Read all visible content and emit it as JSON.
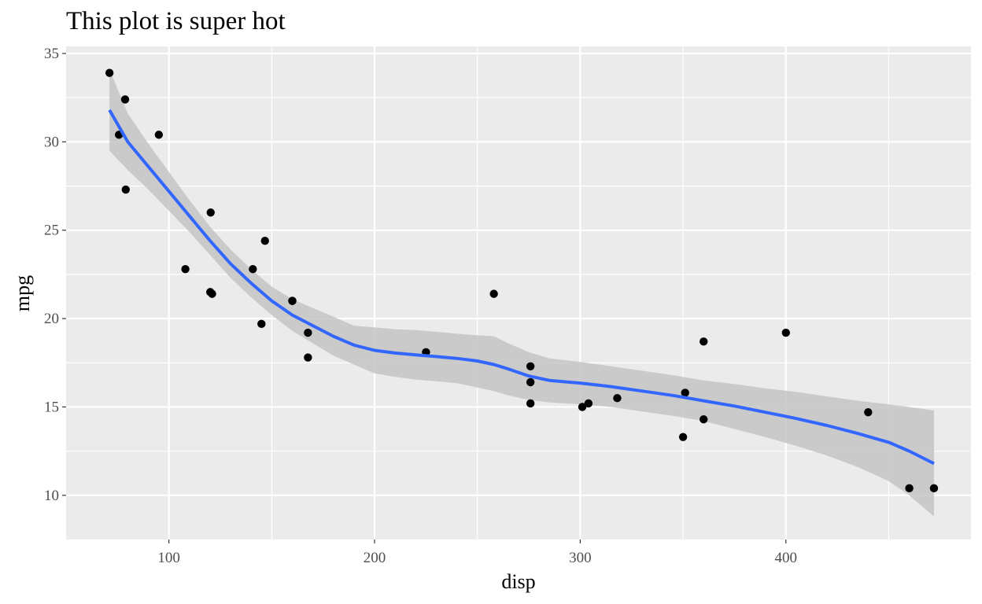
{
  "chart_data": {
    "type": "scatter",
    "title": "This plot is super hot",
    "xlabel": "disp",
    "ylabel": "mpg",
    "xlim": [
      50,
      490
    ],
    "ylim": [
      7.5,
      35.4
    ],
    "x_ticks": [
      100,
      200,
      300,
      400
    ],
    "y_ticks": [
      10,
      15,
      20,
      25,
      30,
      35
    ],
    "grid": true,
    "colors": {
      "panel_background": "#ebebeb",
      "grid_line": "#ffffff",
      "point": "#000000",
      "smooth_line": "#3366ff",
      "confidence_band": "#c4c4c4"
    },
    "series": [
      {
        "points": [
          {
            "x": 71.1,
            "y": 33.9
          },
          {
            "x": 75.7,
            "y": 30.4
          },
          {
            "x": 78.7,
            "y": 32.4
          },
          {
            "x": 79.0,
            "y": 27.3
          },
          {
            "x": 95.1,
            "y": 30.4
          },
          {
            "x": 108.0,
            "y": 22.8
          },
          {
            "x": 120.1,
            "y": 21.5
          },
          {
            "x": 120.3,
            "y": 26.0
          },
          {
            "x": 121.0,
            "y": 21.4
          },
          {
            "x": 140.8,
            "y": 22.8
          },
          {
            "x": 145.0,
            "y": 19.7
          },
          {
            "x": 146.7,
            "y": 24.4
          },
          {
            "x": 160.0,
            "y": 21.0
          },
          {
            "x": 160.0,
            "y": 21.0
          },
          {
            "x": 167.6,
            "y": 19.2
          },
          {
            "x": 167.6,
            "y": 17.8
          },
          {
            "x": 225.0,
            "y": 18.1
          },
          {
            "x": 258.0,
            "y": 21.4
          },
          {
            "x": 275.8,
            "y": 16.4
          },
          {
            "x": 275.8,
            "y": 17.3
          },
          {
            "x": 275.8,
            "y": 15.2
          },
          {
            "x": 301.0,
            "y": 15.0
          },
          {
            "x": 304.0,
            "y": 15.2
          },
          {
            "x": 318.0,
            "y": 15.5
          },
          {
            "x": 350.0,
            "y": 13.3
          },
          {
            "x": 351.0,
            "y": 15.8
          },
          {
            "x": 360.0,
            "y": 18.7
          },
          {
            "x": 360.0,
            "y": 14.3
          },
          {
            "x": 400.0,
            "y": 19.2
          },
          {
            "x": 440.0,
            "y": 14.7
          },
          {
            "x": 460.0,
            "y": 10.4
          },
          {
            "x": 472.0,
            "y": 10.4
          }
        ]
      }
    ],
    "smooth": {
      "x": [
        71.1,
        80,
        90,
        100,
        110,
        120,
        130,
        140,
        150,
        160,
        170,
        180,
        190,
        200,
        210,
        220,
        230,
        240,
        250,
        258,
        265,
        275,
        285,
        300,
        315,
        330,
        345,
        360,
        375,
        390,
        405,
        420,
        435,
        450,
        460,
        472
      ],
      "y": [
        31.8,
        30.0,
        28.6,
        27.2,
        25.8,
        24.4,
        23.1,
        22.0,
        21.0,
        20.2,
        19.6,
        19.0,
        18.5,
        18.2,
        18.05,
        17.95,
        17.85,
        17.75,
        17.6,
        17.4,
        17.15,
        16.75,
        16.5,
        16.35,
        16.15,
        15.9,
        15.65,
        15.35,
        15.05,
        14.7,
        14.35,
        13.95,
        13.5,
        13.0,
        12.5,
        11.8
      ],
      "lower": [
        29.5,
        28.4,
        27.3,
        26.1,
        24.9,
        23.6,
        22.3,
        21.2,
        20.2,
        19.3,
        18.6,
        17.9,
        17.4,
        16.9,
        16.7,
        16.55,
        16.45,
        16.35,
        16.1,
        15.9,
        15.65,
        15.4,
        15.25,
        15.15,
        15.0,
        14.75,
        14.5,
        14.2,
        13.75,
        13.3,
        12.8,
        12.25,
        11.6,
        10.8,
        10.0,
        8.8
      ],
      "upper": [
        34.1,
        31.6,
        29.9,
        28.3,
        26.7,
        25.2,
        23.9,
        22.8,
        21.8,
        21.1,
        20.6,
        20.1,
        19.6,
        19.5,
        19.4,
        19.35,
        19.25,
        19.15,
        19.05,
        19.0,
        18.6,
        18.1,
        17.75,
        17.55,
        17.3,
        17.05,
        16.8,
        16.5,
        16.3,
        16.05,
        15.85,
        15.6,
        15.35,
        15.15,
        15.0,
        14.8
      ]
    }
  }
}
